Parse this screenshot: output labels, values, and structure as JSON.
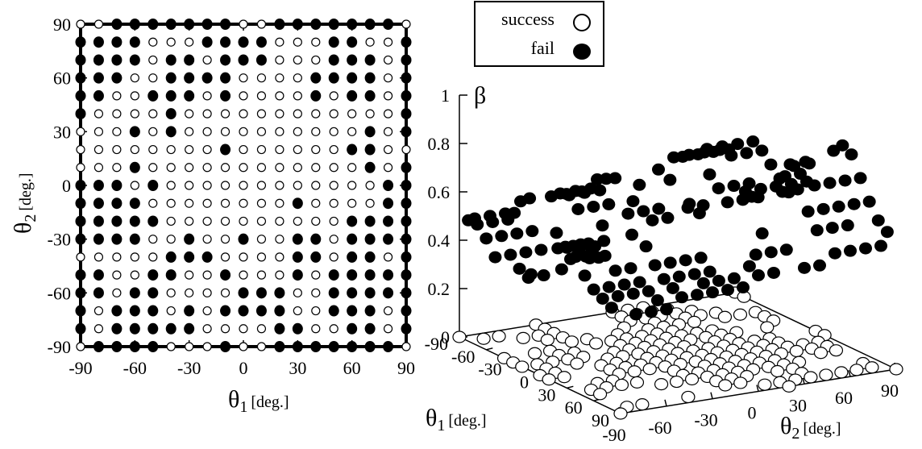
{
  "chart_data": [
    {
      "type": "scatter",
      "title": "",
      "xlabel": {
        "symbol": "θ",
        "sub": "1",
        "unit": "[deg.]"
      },
      "ylabel": {
        "symbol": "θ",
        "sub": "2",
        "unit": "[deg.]"
      },
      "xlim": [
        -90,
        90
      ],
      "ylim": [
        -90,
        90
      ],
      "xticks": [
        "-90",
        "-60",
        "-30",
        "0",
        "30",
        "60",
        "90"
      ],
      "yticks": [
        "90",
        "60",
        "30",
        "0",
        "-30",
        "-60",
        "-90"
      ],
      "grid_step": 10,
      "series": [
        {
          "name": "success",
          "marker": "open-circle"
        },
        {
          "name": "fail",
          "marker": "filled-circle"
        }
      ],
      "fail_rows": [
        "0011111110011111110",
        "1111000111100011001",
        "1111011011100011101",
        "1110011110000111101",
        "1100111010000101101",
        "1000010000000000001",
        "0001010000000000101",
        "0000000010000001100",
        "0001000000000000101",
        "1110100000000000011",
        "1111000000001000011",
        "1111100000000001111",
        "1111001001001101111",
        "0000011100001101101",
        "1100110010001011111",
        "1101100001110011111",
        "1011101011110011101",
        "1011111000011001101",
        "0111100010011111110"
      ],
      "row_order": "theta2 from 90 (first row) down to -90 (last row); columns theta1 from -90 to 90 in steps of 10; 1 = fail, 0 = success"
    },
    {
      "type": "scatter",
      "title": "",
      "xlabel": {
        "symbol": "θ",
        "sub": "1",
        "unit": "[deg.]"
      },
      "ylabel": {
        "symbol": "θ",
        "sub": "2",
        "unit": "[deg.]"
      },
      "zlabel": "β",
      "xlim": [
        -90,
        90
      ],
      "ylim": [
        -90,
        90
      ],
      "zlim": [
        0,
        1
      ],
      "xticks": [
        "-90",
        "-60",
        "-30",
        "0",
        "30",
        "60",
        "90"
      ],
      "yticks": [
        "-90",
        "-60",
        "-30",
        "0",
        "30",
        "60",
        "90"
      ],
      "zticks": [
        "0",
        "0.2",
        "0.4",
        "0.6",
        "0.8",
        "1"
      ],
      "series": [
        {
          "name": "fail",
          "marker": "filled-circle",
          "z": "beta value per failed configuration"
        },
        {
          "name": "success",
          "marker": "open-circle",
          "z": 0
        }
      ],
      "beta_fail_rows": [
        [
          0.6,
          0.62,
          0.66,
          0.64,
          0.6,
          0.56,
          0.52,
          0.55,
          0.6,
          0.66,
          0.72,
          0.78,
          0.82,
          0.8,
          0.72,
          0.64,
          0.58,
          0.55,
          0.52
        ],
        [
          0.56,
          0.58,
          0.6,
          0.58,
          0.54,
          0.5,
          0.46,
          0.48,
          0.54,
          0.6,
          0.66,
          0.72,
          0.76,
          0.74,
          0.66,
          0.58,
          0.52,
          0.5,
          0.48
        ],
        [
          0.52,
          0.55,
          0.56,
          0.52,
          0.46,
          0.42,
          0.38,
          0.4,
          0.46,
          0.52,
          0.58,
          0.64,
          0.68,
          0.66,
          0.58,
          0.52,
          0.48,
          0.46,
          0.44
        ],
        [
          0.48,
          0.5,
          0.5,
          0.46,
          0.4,
          0.36,
          0.34,
          0.36,
          0.4,
          0.46,
          0.52,
          0.56,
          0.58,
          0.56,
          0.5,
          0.46,
          0.44,
          0.42,
          0.4
        ]
      ],
      "beta_row_bands": "rows cover theta2 bands 90..45, 45..0, 0..-45, -45..-90; columns theta1 from -90 to 90 in steps of 10"
    }
  ],
  "legend": {
    "entries": [
      {
        "label": "success",
        "marker": "open-circle"
      },
      {
        "label": "fail",
        "marker": "filled-circle"
      }
    ],
    "placement": "top-center"
  }
}
